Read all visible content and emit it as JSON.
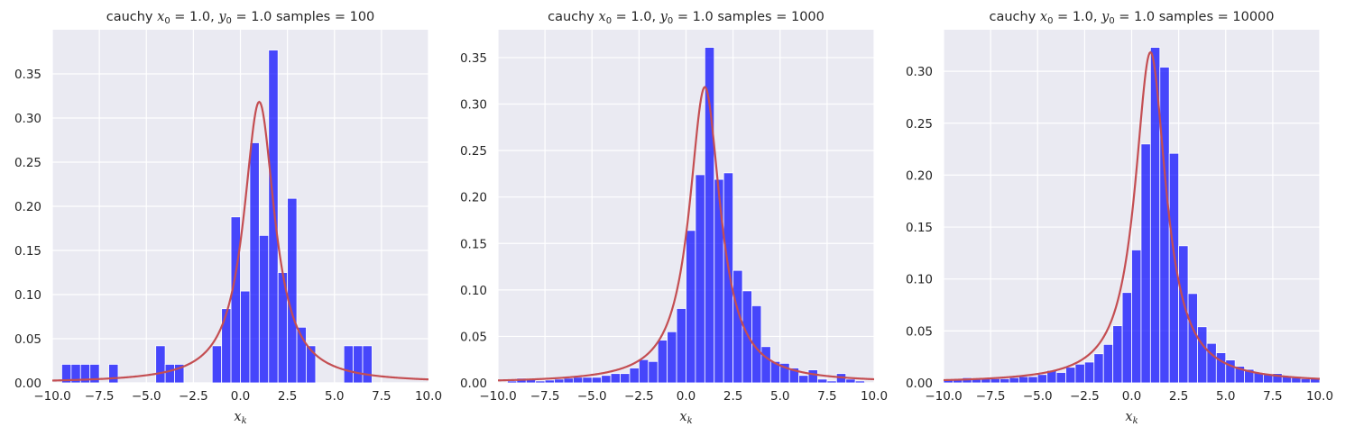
{
  "colors": {
    "background": "#eaeaf2",
    "grid": "#ffffff",
    "bar": "#0000ff",
    "pdf_line": "#c44e52",
    "text": "#262626"
  },
  "chart_data": [
    {
      "type": "bar",
      "title": "cauchy $x_0 = 1.0$, $y_0 = 1.0$  samples = 100",
      "title_parts": {
        "prefix": "cauchy ",
        "x_sym": "x",
        "x_sub": "0",
        "x_val": " = 1.0, ",
        "y_sym": "y",
        "y_sub": "0",
        "y_val": " = 1.0  samples = 100"
      },
      "xlabel": "$x_k$",
      "xlabel_parts": {
        "sym": "x",
        "sub": "k"
      },
      "xlim": [
        -10,
        10
      ],
      "ylim": [
        0,
        0.4
      ],
      "xticks": [
        "−10.0",
        "−7.5",
        "−5.0",
        "−2.5",
        "0.0",
        "2.5",
        "5.0",
        "7.5",
        "10.0"
      ],
      "xtick_values": [
        -10,
        -7.5,
        -5,
        -2.5,
        0,
        2.5,
        5,
        7.5,
        10
      ],
      "yticks": [
        "0.00",
        "0.05",
        "0.10",
        "0.15",
        "0.20",
        "0.25",
        "0.30",
        "0.35"
      ],
      "ytick_values": [
        0,
        0.05,
        0.1,
        0.15,
        0.2,
        0.25,
        0.3,
        0.35
      ],
      "grid": true,
      "bin_width": 0.5,
      "histogram": [
        {
          "x": -9.5,
          "y": 0.021
        },
        {
          "x": -9.0,
          "y": 0.021
        },
        {
          "x": -8.5,
          "y": 0.021
        },
        {
          "x": -8.0,
          "y": 0.021
        },
        {
          "x": -7.0,
          "y": 0.021
        },
        {
          "x": -4.5,
          "y": 0.042
        },
        {
          "x": -4.0,
          "y": 0.021
        },
        {
          "x": -3.5,
          "y": 0.021
        },
        {
          "x": -1.5,
          "y": 0.042
        },
        {
          "x": -1.0,
          "y": 0.084
        },
        {
          "x": -0.5,
          "y": 0.188
        },
        {
          "x": 0.0,
          "y": 0.104
        },
        {
          "x": 0.5,
          "y": 0.272
        },
        {
          "x": 1.0,
          "y": 0.167
        },
        {
          "x": 1.5,
          "y": 0.377
        },
        {
          "x": 2.0,
          "y": 0.125
        },
        {
          "x": 2.5,
          "y": 0.209
        },
        {
          "x": 3.0,
          "y": 0.063
        },
        {
          "x": 3.5,
          "y": 0.042
        },
        {
          "x": 5.5,
          "y": 0.042
        },
        {
          "x": 6.0,
          "y": 0.042
        },
        {
          "x": 6.5,
          "y": 0.042
        }
      ],
      "pdf": {
        "x0": 1.0,
        "gamma": 1.0
      }
    },
    {
      "type": "bar",
      "title": "cauchy $x_0 = 1.0$, $y_0 = 1.0$  samples = 1000",
      "title_parts": {
        "prefix": "cauchy ",
        "x_sym": "x",
        "x_sub": "0",
        "x_val": " = 1.0, ",
        "y_sym": "y",
        "y_sub": "0",
        "y_val": " = 1.0  samples = 1000"
      },
      "xlabel": "$x_k$",
      "xlabel_parts": {
        "sym": "x",
        "sub": "k"
      },
      "xlim": [
        -10,
        10
      ],
      "ylim": [
        0,
        0.38
      ],
      "xticks": [
        "−10.0",
        "−7.5",
        "−5.0",
        "−2.5",
        "0.0",
        "2.5",
        "5.0",
        "7.5",
        "10.0"
      ],
      "xtick_values": [
        -10,
        -7.5,
        -5,
        -2.5,
        0,
        2.5,
        5,
        7.5,
        10
      ],
      "yticks": [
        "0.00",
        "0.05",
        "0.10",
        "0.15",
        "0.20",
        "0.25",
        "0.30",
        "0.35"
      ],
      "ytick_values": [
        0,
        0.05,
        0.1,
        0.15,
        0.2,
        0.25,
        0.3,
        0.35
      ],
      "grid": true,
      "bin_width": 0.5,
      "histogram": [
        {
          "x": -9.5,
          "y": 0.002
        },
        {
          "x": -9.0,
          "y": 0.005
        },
        {
          "x": -8.5,
          "y": 0.004
        },
        {
          "x": -8.0,
          "y": 0.002
        },
        {
          "x": -7.5,
          "y": 0.003
        },
        {
          "x": -7.0,
          "y": 0.004
        },
        {
          "x": -6.5,
          "y": 0.005
        },
        {
          "x": -6.0,
          "y": 0.006
        },
        {
          "x": -5.5,
          "y": 0.006
        },
        {
          "x": -5.0,
          "y": 0.006
        },
        {
          "x": -4.5,
          "y": 0.008
        },
        {
          "x": -4.0,
          "y": 0.01
        },
        {
          "x": -3.5,
          "y": 0.01
        },
        {
          "x": -3.0,
          "y": 0.016
        },
        {
          "x": -2.5,
          "y": 0.025
        },
        {
          "x": -2.0,
          "y": 0.023
        },
        {
          "x": -1.5,
          "y": 0.046
        },
        {
          "x": -1.0,
          "y": 0.055
        },
        {
          "x": -0.5,
          "y": 0.08
        },
        {
          "x": 0.0,
          "y": 0.164
        },
        {
          "x": 0.5,
          "y": 0.224
        },
        {
          "x": 1.0,
          "y": 0.361
        },
        {
          "x": 1.5,
          "y": 0.219
        },
        {
          "x": 2.0,
          "y": 0.226
        },
        {
          "x": 2.5,
          "y": 0.121
        },
        {
          "x": 3.0,
          "y": 0.099
        },
        {
          "x": 3.5,
          "y": 0.083
        },
        {
          "x": 4.0,
          "y": 0.039
        },
        {
          "x": 4.5,
          "y": 0.023
        },
        {
          "x": 5.0,
          "y": 0.021
        },
        {
          "x": 5.5,
          "y": 0.016
        },
        {
          "x": 6.0,
          "y": 0.008
        },
        {
          "x": 6.5,
          "y": 0.014
        },
        {
          "x": 7.0,
          "y": 0.004
        },
        {
          "x": 7.5,
          "y": 0.002
        },
        {
          "x": 8.0,
          "y": 0.01
        },
        {
          "x": 8.5,
          "y": 0.004
        },
        {
          "x": 9.0,
          "y": 0.002
        }
      ],
      "pdf": {
        "x0": 1.0,
        "gamma": 1.0
      }
    },
    {
      "type": "bar",
      "title": "cauchy $x_0 = 1.0$, $y_0 = 1.0$  samples = 10000",
      "title_parts": {
        "prefix": "cauchy ",
        "x_sym": "x",
        "x_sub": "0",
        "x_val": " = 1.0, ",
        "y_sym": "y",
        "y_sub": "0",
        "y_val": " = 1.0  samples = 10000"
      },
      "xlabel": "$x_k$",
      "xlabel_parts": {
        "sym": "x",
        "sub": "k"
      },
      "xlim": [
        -10,
        10
      ],
      "ylim": [
        0,
        0.34
      ],
      "xticks": [
        "−10.0",
        "−7.5",
        "−5.0",
        "−2.5",
        "0.0",
        "2.5",
        "5.0",
        "7.5",
        "10.0"
      ],
      "xtick_values": [
        -10,
        -7.5,
        -5,
        -2.5,
        0,
        2.5,
        5,
        7.5,
        10
      ],
      "yticks": [
        "0.00",
        "0.05",
        "0.10",
        "0.15",
        "0.20",
        "0.25",
        "0.30"
      ],
      "ytick_values": [
        0,
        0.05,
        0.1,
        0.15,
        0.2,
        0.25,
        0.3
      ],
      "grid": true,
      "bin_width": 0.5,
      "histogram": [
        {
          "x": -10.0,
          "y": 0.003
        },
        {
          "x": -9.5,
          "y": 0.003
        },
        {
          "x": -9.0,
          "y": 0.005
        },
        {
          "x": -8.5,
          "y": 0.004
        },
        {
          "x": -8.0,
          "y": 0.005
        },
        {
          "x": -7.5,
          "y": 0.004
        },
        {
          "x": -7.0,
          "y": 0.004
        },
        {
          "x": -6.5,
          "y": 0.005
        },
        {
          "x": -6.0,
          "y": 0.006
        },
        {
          "x": -5.5,
          "y": 0.006
        },
        {
          "x": -5.0,
          "y": 0.008
        },
        {
          "x": -4.5,
          "y": 0.012
        },
        {
          "x": -4.0,
          "y": 0.01
        },
        {
          "x": -3.5,
          "y": 0.015
        },
        {
          "x": -3.0,
          "y": 0.018
        },
        {
          "x": -2.5,
          "y": 0.02
        },
        {
          "x": -2.0,
          "y": 0.028
        },
        {
          "x": -1.5,
          "y": 0.037
        },
        {
          "x": -1.0,
          "y": 0.055
        },
        {
          "x": -0.5,
          "y": 0.087
        },
        {
          "x": 0.0,
          "y": 0.128
        },
        {
          "x": 0.5,
          "y": 0.23
        },
        {
          "x": 1.0,
          "y": 0.323
        },
        {
          "x": 1.5,
          "y": 0.304
        },
        {
          "x": 2.0,
          "y": 0.221
        },
        {
          "x": 2.5,
          "y": 0.132
        },
        {
          "x": 3.0,
          "y": 0.086
        },
        {
          "x": 3.5,
          "y": 0.054
        },
        {
          "x": 4.0,
          "y": 0.038
        },
        {
          "x": 4.5,
          "y": 0.029
        },
        {
          "x": 5.0,
          "y": 0.022
        },
        {
          "x": 5.5,
          "y": 0.016
        },
        {
          "x": 6.0,
          "y": 0.013
        },
        {
          "x": 6.5,
          "y": 0.01
        },
        {
          "x": 7.0,
          "y": 0.008
        },
        {
          "x": 7.5,
          "y": 0.009
        },
        {
          "x": 8.0,
          "y": 0.006
        },
        {
          "x": 8.5,
          "y": 0.005
        },
        {
          "x": 9.0,
          "y": 0.004
        },
        {
          "x": 9.5,
          "y": 0.004
        }
      ],
      "pdf": {
        "x0": 1.0,
        "gamma": 1.0
      }
    }
  ]
}
